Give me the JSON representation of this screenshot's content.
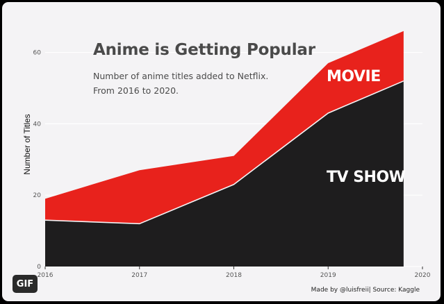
{
  "chart_data": {
    "type": "area",
    "stacked": true,
    "title": "Anime is Getting Popular",
    "subtitle_lines": [
      "Number of anime titles added to Netflix.",
      "From 2016 to 2020."
    ],
    "xlabel": "",
    "ylabel": "Number of Titles",
    "x": [
      2016,
      2017,
      2018,
      2019,
      2019.8
    ],
    "xlim": [
      2016,
      2020
    ],
    "ylim": [
      0,
      64
    ],
    "x_ticks": [
      2016,
      2017,
      2018,
      2019,
      2020
    ],
    "y_ticks": [
      0,
      20,
      40,
      60
    ],
    "grid": true,
    "series": [
      {
        "name": "TV SHOW",
        "values": [
          13,
          12,
          23,
          43,
          52
        ],
        "color": "#1e1d1e"
      },
      {
        "name": "MOVIE",
        "values": [
          6,
          15,
          8,
          14,
          14
        ],
        "color": "#e8221c"
      }
    ],
    "caption": "Made by @luisfreii| Source: Kaggle"
  },
  "badge": {
    "label": "GIF"
  }
}
